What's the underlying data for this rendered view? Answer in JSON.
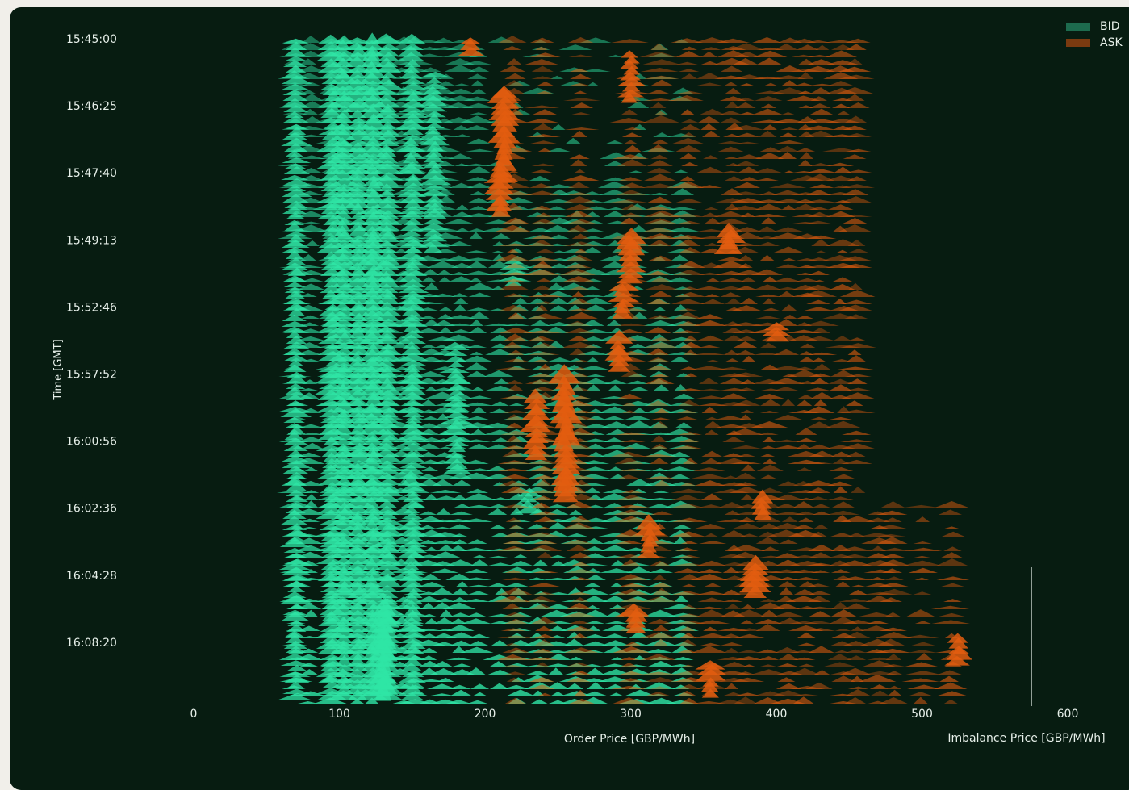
{
  "chart_data": {
    "type": "area",
    "title": "",
    "xlabel": "Order Price [GBP/MWh]",
    "ylabel": "Time [GMT]",
    "secondary_xlabel": "Imbalance Price [GBP/MWh]",
    "x_ticks": [
      0,
      100,
      200,
      300,
      400,
      500,
      600
    ],
    "xlim": [
      0,
      600
    ],
    "y_ticks": [
      "15:45:00",
      "15:46:25",
      "15:47:40",
      "15:49:13",
      "15:52:46",
      "15:57:52",
      "16:00:56",
      "16:02:36",
      "16:04:28",
      "16:08:20"
    ],
    "imbalance_price": 575,
    "series": [
      {
        "name": "BID",
        "color": "#1d6b4e",
        "highlight_color": "#2fe5a6",
        "price_levels": [
          70,
          80,
          95,
          103,
          113,
          123,
          133,
          143,
          152,
          162,
          172,
          183,
          195,
          210,
          223,
          237,
          250,
          262,
          275,
          290,
          305,
          320,
          335
        ],
        "clusters": [
          {
            "x": 70,
            "t0": 0.0,
            "t1": 1.0,
            "h": 10
          },
          {
            "x": 95,
            "t0": 0.0,
            "t1": 1.0,
            "h": 12
          },
          {
            "x": 103,
            "t0": 0.0,
            "t1": 1.0,
            "h": 14
          },
          {
            "x": 113,
            "t0": 0.0,
            "t1": 1.0,
            "h": 13
          },
          {
            "x": 123,
            "t0": 0.0,
            "t1": 1.0,
            "h": 16
          },
          {
            "x": 133,
            "t0": 0.0,
            "t1": 1.0,
            "h": 13
          },
          {
            "x": 150,
            "t0": 0.0,
            "t1": 1.0,
            "h": 12
          },
          {
            "x": 165,
            "t0": 0.05,
            "t1": 0.33,
            "h": 12
          },
          {
            "x": 180,
            "t0": 0.46,
            "t1": 0.66,
            "h": 12
          },
          {
            "x": 220,
            "t0": 0.33,
            "t1": 0.38,
            "h": 10
          },
          {
            "x": 230,
            "t0": 0.68,
            "t1": 0.72,
            "h": 12
          },
          {
            "x": 130,
            "t0": 0.86,
            "t1": 1.0,
            "h": 28
          }
        ]
      },
      {
        "name": "ASK",
        "color": "#7a3a10",
        "highlight_color": "#e35d0f",
        "price_levels": [
          220,
          240,
          265,
          300,
          320,
          340,
          355,
          370,
          380,
          395,
          408,
          420,
          430,
          445,
          455,
          470,
          480,
          500,
          520
        ],
        "clusters": [
          {
            "x": 190,
            "t0": 0.0,
            "t1": 0.03,
            "h": 14
          },
          {
            "x": 213,
            "t0": 0.08,
            "t1": 0.22,
            "h": 22
          },
          {
            "x": 210,
            "t0": 0.2,
            "t1": 0.27,
            "h": 18
          },
          {
            "x": 300,
            "t0": 0.02,
            "t1": 0.1,
            "h": 14
          },
          {
            "x": 300,
            "t0": 0.3,
            "t1": 0.37,
            "h": 20
          },
          {
            "x": 368,
            "t0": 0.29,
            "t1": 0.33,
            "h": 18
          },
          {
            "x": 295,
            "t0": 0.37,
            "t1": 0.43,
            "h": 18
          },
          {
            "x": 400,
            "t0": 0.43,
            "t1": 0.46,
            "h": 16
          },
          {
            "x": 292,
            "t0": 0.45,
            "t1": 0.51,
            "h": 18
          },
          {
            "x": 255,
            "t0": 0.51,
            "t1": 0.7,
            "h": 26
          },
          {
            "x": 235,
            "t0": 0.54,
            "t1": 0.64,
            "h": 18
          },
          {
            "x": 390,
            "t0": 0.69,
            "t1": 0.73,
            "h": 18
          },
          {
            "x": 313,
            "t0": 0.73,
            "t1": 0.79,
            "h": 18
          },
          {
            "x": 385,
            "t0": 0.79,
            "t1": 0.85,
            "h": 20
          },
          {
            "x": 303,
            "t0": 0.86,
            "t1": 0.9,
            "h": 20
          },
          {
            "x": 525,
            "t0": 0.9,
            "t1": 0.95,
            "h": 16
          },
          {
            "x": 355,
            "t0": 0.94,
            "t1": 1.0,
            "h": 14
          }
        ]
      }
    ],
    "legend": {
      "entries": [
        "BID",
        "ASK"
      ],
      "placement": "top-right"
    },
    "grid": false
  },
  "colors": {
    "background": "#071c11",
    "page": "#f1efea",
    "text": "#e6efe9",
    "imbalance_line": "#e6efe9"
  }
}
